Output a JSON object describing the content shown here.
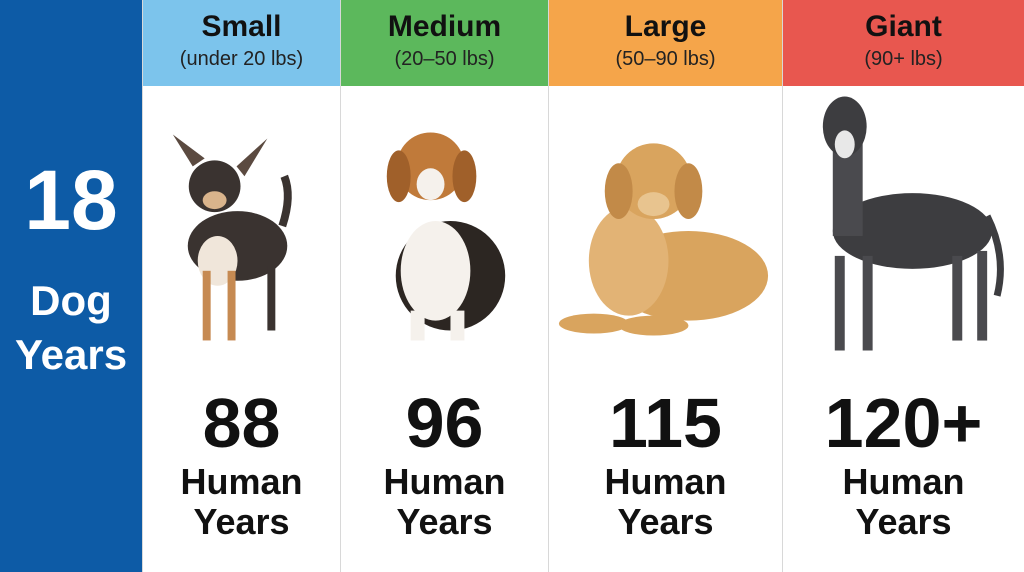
{
  "sidebar": {
    "number": "18",
    "label": "Dog Years"
  },
  "columns": [
    {
      "title": "Small",
      "subtitle": "(under 20 lbs)",
      "value": "88",
      "unit": "Human Years"
    },
    {
      "title": "Medium",
      "subtitle": "(20–50 lbs)",
      "value": "96",
      "unit": "Human Years"
    },
    {
      "title": "Large",
      "subtitle": "(50–90 lbs)",
      "value": "115",
      "unit": "Human Years"
    },
    {
      "title": "Giant",
      "subtitle": "(90+ lbs)",
      "value": "120+",
      "unit": "Human Years"
    }
  ]
}
